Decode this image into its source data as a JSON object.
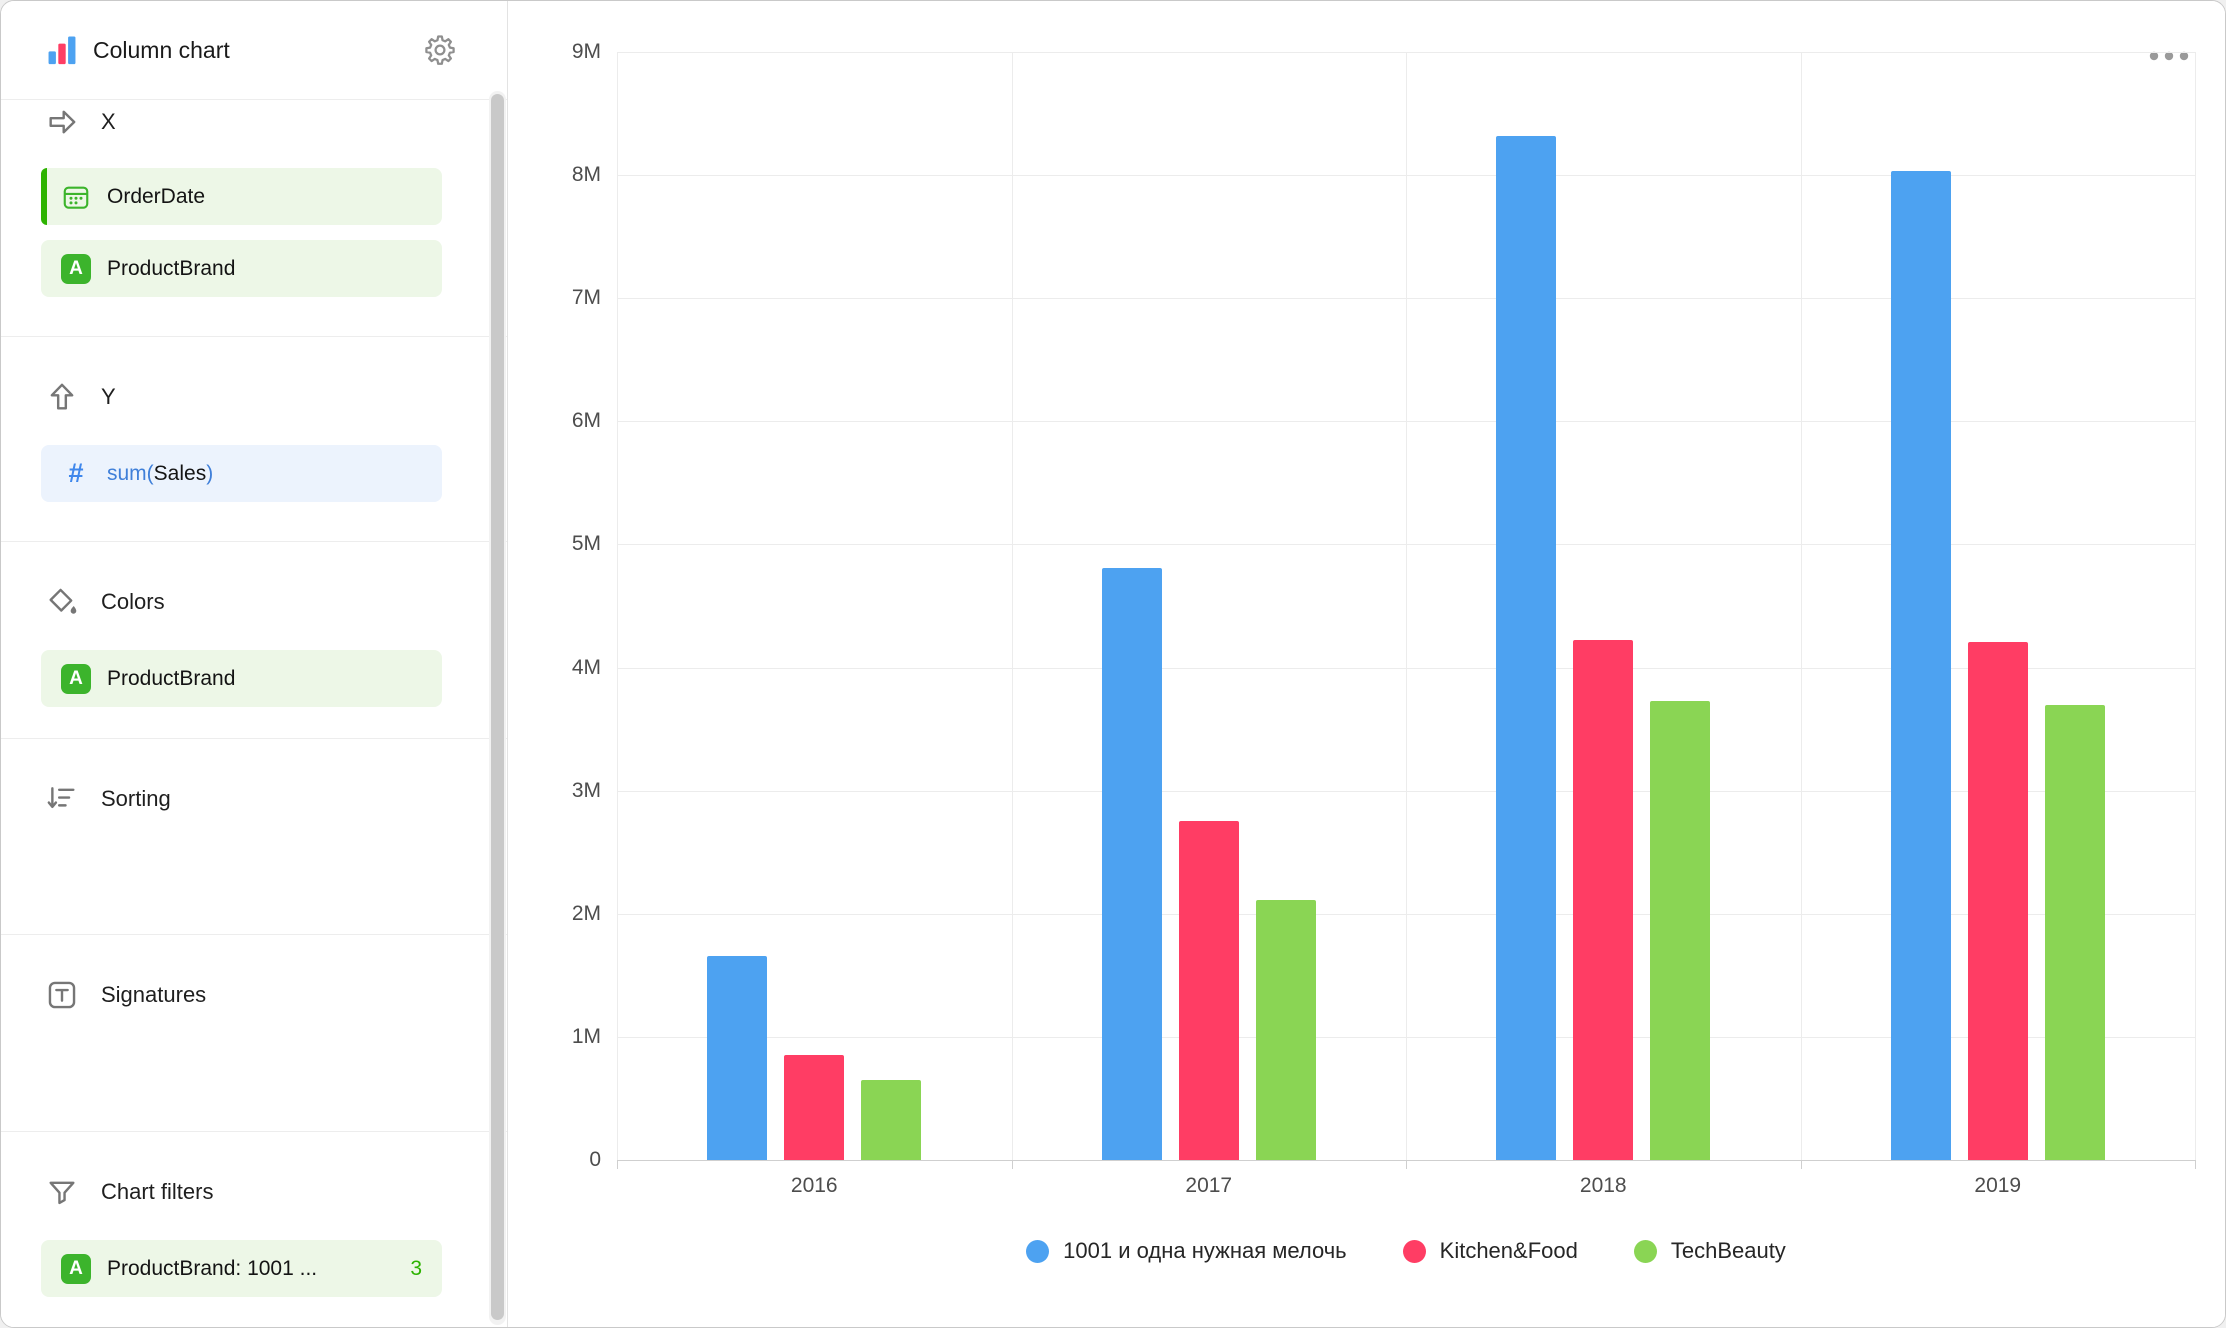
{
  "sidebar": {
    "header": {
      "title": "Column chart"
    },
    "sections": {
      "x": {
        "label": "X",
        "fields": [
          {
            "label": "OrderDate",
            "type": "date",
            "accented": true
          },
          {
            "label": "ProductBrand",
            "type": "string"
          }
        ]
      },
      "y": {
        "label": "Y",
        "field": {
          "prefix": "sum(",
          "name": "Sales",
          "suffix": ")"
        }
      },
      "colors": {
        "label": "Colors",
        "fields": [
          {
            "label": "ProductBrand",
            "type": "string"
          }
        ]
      },
      "sorting": {
        "label": "Sorting"
      },
      "signatures": {
        "label": "Signatures"
      },
      "filters": {
        "label": "Chart filters",
        "fields": [
          {
            "label": "ProductBrand: 1001 ...",
            "badge": "3"
          }
        ]
      }
    }
  },
  "icons": {
    "string_field_glyph": "A",
    "number_field_glyph": "#"
  },
  "ui_colors": {
    "accent_green": "#2db300",
    "field_green_bg": "#edf7e7",
    "field_blue_bg": "#ecf3fd",
    "accent_blue": "#3f7fd9"
  },
  "chart_data": {
    "type": "bar",
    "categories": [
      "2016",
      "2017",
      "2018",
      "2019"
    ],
    "series": [
      {
        "name": "1001 и одна нужная мелочь",
        "color": "#4DA2F1",
        "values": [
          1.66,
          4.81,
          8.32,
          8.03
        ]
      },
      {
        "name": "Kitchen&Food",
        "color": "#FF3D64",
        "values": [
          0.85,
          2.75,
          4.22,
          4.21
        ]
      },
      {
        "name": "TechBeauty",
        "color": "#8AD554",
        "values": [
          0.65,
          2.11,
          3.73,
          3.7
        ]
      }
    ],
    "value_unit": "M",
    "ylim": [
      0,
      9
    ],
    "yticks": [
      "0",
      "1M",
      "2M",
      "3M",
      "4M",
      "5M",
      "6M",
      "7M",
      "8M",
      "9M"
    ],
    "grid": true,
    "legend_position": "bottom"
  }
}
